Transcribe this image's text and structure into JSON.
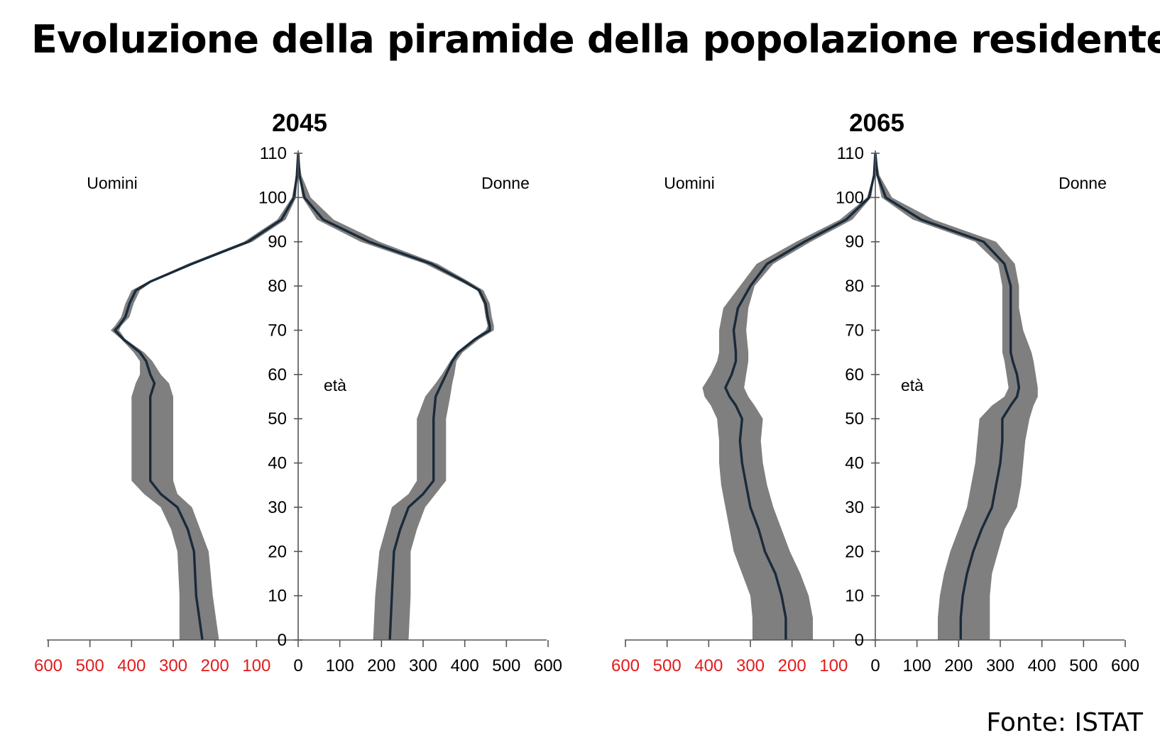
{
  "title": "Evoluzione della piramide della popolazione residente",
  "source": "Fonte: ISTAT",
  "colors": {
    "band": "#7f7f7f",
    "line": "#1a2a3a",
    "axis": "#555555",
    "neg_tick": "#e31a1c",
    "text": "#000000"
  },
  "chart_data": [
    {
      "type": "area",
      "title": "2045",
      "left_label": "Uomini",
      "right_label": "Donne",
      "center_label": "età",
      "x_ticks": [
        "600",
        "500",
        "400",
        "300",
        "200",
        "100",
        "0",
        "100",
        "200",
        "300",
        "400",
        "500",
        "600"
      ],
      "y_ticks": [
        "0",
        "10",
        "20",
        "30",
        "40",
        "50",
        "60",
        "70",
        "80",
        "90",
        "100",
        "110"
      ],
      "xlim": [
        -600,
        600
      ],
      "ylim": [
        0,
        110
      ],
      "series": [
        {
          "name": "Uomini",
          "side": "left",
          "ages": [
            0,
            10,
            20,
            25,
            30,
            33,
            36,
            40,
            45,
            50,
            55,
            58,
            60,
            63,
            65,
            68,
            70,
            71,
            73,
            76,
            79,
            81,
            85,
            90,
            95,
            100,
            105,
            110
          ],
          "median": [
            230,
            245,
            250,
            265,
            290,
            330,
            355,
            355,
            355,
            355,
            355,
            345,
            355,
            365,
            380,
            420,
            440,
            430,
            415,
            405,
            390,
            355,
            255,
            120,
            40,
            10,
            3,
            0
          ],
          "low": [
            190,
            205,
            215,
            235,
            255,
            290,
            300,
            300,
            300,
            300,
            300,
            310,
            330,
            350,
            370,
            415,
            430,
            425,
            405,
            395,
            380,
            350,
            250,
            110,
            30,
            5,
            2,
            0
          ],
          "high": [
            285,
            285,
            290,
            305,
            330,
            370,
            400,
            400,
            400,
            400,
            400,
            390,
            380,
            380,
            395,
            425,
            450,
            440,
            425,
            415,
            400,
            360,
            265,
            130,
            50,
            15,
            5,
            0
          ]
        },
        {
          "name": "Donne",
          "side": "right",
          "ages": [
            0,
            10,
            20,
            25,
            30,
            33,
            36,
            40,
            45,
            50,
            55,
            58,
            60,
            63,
            65,
            68,
            70,
            71,
            73,
            76,
            79,
            81,
            85,
            90,
            95,
            100,
            105,
            110
          ],
          "median": [
            220,
            225,
            230,
            245,
            265,
            300,
            325,
            325,
            325,
            325,
            330,
            345,
            355,
            370,
            385,
            425,
            460,
            460,
            455,
            450,
            435,
            400,
            320,
            170,
            60,
            15,
            3,
            0
          ],
          "low": [
            180,
            185,
            195,
            210,
            225,
            265,
            285,
            285,
            285,
            285,
            305,
            330,
            345,
            365,
            380,
            420,
            450,
            455,
            450,
            445,
            430,
            390,
            305,
            150,
            45,
            10,
            2,
            0
          ],
          "high": [
            265,
            270,
            270,
            285,
            305,
            330,
            355,
            355,
            355,
            355,
            365,
            370,
            375,
            380,
            395,
            435,
            470,
            470,
            465,
            460,
            445,
            410,
            335,
            195,
            85,
            30,
            8,
            0
          ]
        }
      ]
    },
    {
      "type": "area",
      "title": "2065",
      "left_label": "Uomini",
      "right_label": "Donne",
      "center_label": "età",
      "x_ticks": [
        "600",
        "500",
        "400",
        "300",
        "200",
        "100",
        "0",
        "100",
        "200",
        "300",
        "400",
        "500",
        "600"
      ],
      "y_ticks": [
        "0",
        "10",
        "20",
        "30",
        "40",
        "50",
        "60",
        "70",
        "80",
        "90",
        "100",
        "110"
      ],
      "xlim": [
        -600,
        600
      ],
      "ylim": [
        0,
        110
      ],
      "series": [
        {
          "name": "Uomini",
          "side": "left",
          "ages": [
            0,
            5,
            10,
            15,
            20,
            25,
            30,
            35,
            40,
            45,
            50,
            53,
            55,
            57,
            60,
            63,
            65,
            70,
            75,
            80,
            85,
            90,
            95,
            100,
            105,
            110
          ],
          "median": [
            215,
            215,
            225,
            240,
            265,
            280,
            300,
            310,
            320,
            325,
            320,
            335,
            350,
            360,
            345,
            335,
            335,
            340,
            330,
            300,
            260,
            170,
            70,
            15,
            3,
            0
          ],
          "low": [
            150,
            150,
            160,
            180,
            205,
            225,
            245,
            260,
            270,
            275,
            270,
            290,
            305,
            315,
            310,
            305,
            305,
            310,
            305,
            290,
            245,
            155,
            55,
            10,
            2,
            0
          ],
          "high": [
            295,
            295,
            300,
            320,
            340,
            350,
            360,
            370,
            375,
            375,
            380,
            395,
            410,
            415,
            395,
            380,
            375,
            375,
            365,
            325,
            285,
            190,
            85,
            20,
            5,
            0
          ]
        },
        {
          "name": "Donne",
          "side": "right",
          "ages": [
            0,
            5,
            10,
            15,
            20,
            25,
            30,
            35,
            40,
            45,
            50,
            53,
            55,
            57,
            60,
            63,
            65,
            70,
            75,
            80,
            85,
            90,
            95,
            100,
            105,
            110
          ],
          "median": [
            205,
            205,
            210,
            220,
            235,
            255,
            280,
            290,
            300,
            305,
            305,
            325,
            340,
            345,
            340,
            330,
            325,
            325,
            325,
            325,
            310,
            260,
            110,
            25,
            5,
            0
          ],
          "low": [
            150,
            150,
            155,
            165,
            180,
            200,
            220,
            230,
            240,
            245,
            250,
            280,
            310,
            320,
            315,
            310,
            305,
            305,
            305,
            305,
            295,
            240,
            90,
            15,
            3,
            0
          ],
          "high": [
            275,
            275,
            275,
            280,
            295,
            310,
            340,
            350,
            355,
            360,
            370,
            380,
            390,
            390,
            385,
            380,
            375,
            355,
            345,
            345,
            335,
            290,
            140,
            40,
            10,
            0
          ]
        }
      ]
    }
  ]
}
